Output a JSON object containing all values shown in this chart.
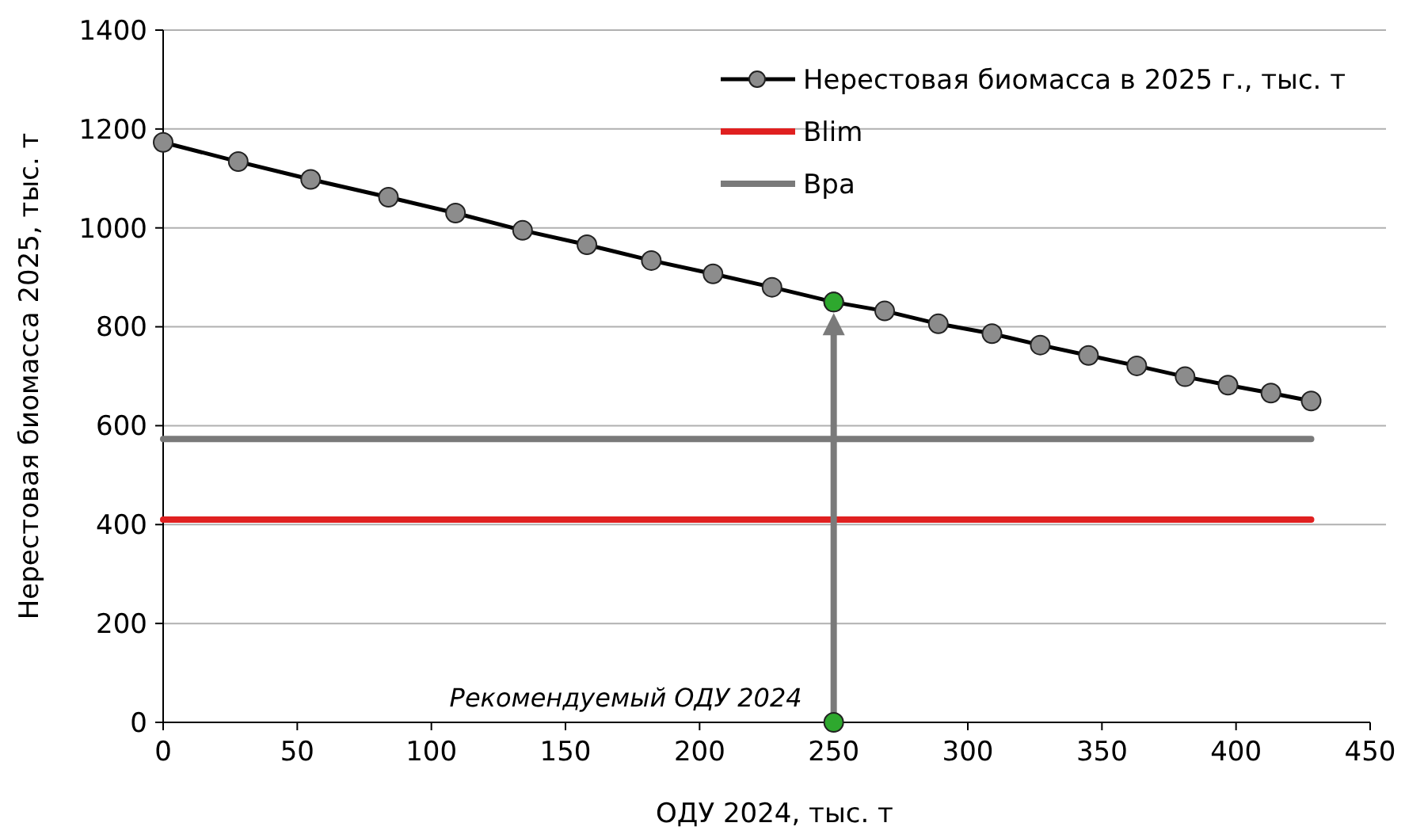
{
  "chart_data": {
    "type": "line",
    "xlabel": "ОДУ 2024, тыс. т",
    "ylabel": "Нерестовая биомасса 2025, тыс. т",
    "xlim": [
      0,
      450
    ],
    "xticks": [
      0,
      50,
      100,
      150,
      200,
      250,
      300,
      350,
      400,
      450
    ],
    "ylim": [
      0,
      1400
    ],
    "yticks": [
      0,
      200,
      400,
      600,
      800,
      1000,
      1200,
      1400
    ],
    "grid": "y",
    "legend": "top right",
    "series": [
      {
        "name": "Нерестовая биомасса в 2025 г., тыс. т",
        "color": "#000000",
        "marker": "circle",
        "x": [
          0,
          28,
          55,
          84,
          109,
          134,
          158,
          182,
          205,
          227,
          250,
          269,
          289,
          309,
          327,
          345,
          363,
          381,
          397,
          413,
          428
        ],
        "values": [
          1173,
          1134,
          1098,
          1062,
          1030,
          995,
          966,
          934,
          907,
          880,
          850,
          832,
          806,
          786,
          763,
          742,
          721,
          699,
          682,
          666,
          650
        ]
      },
      {
        "name": "Blim",
        "color": "#e02020",
        "x": [
          0,
          428
        ],
        "values": [
          410,
          410
        ]
      },
      {
        "name": "Bpa",
        "color": "#7a7a7a",
        "x": [
          0,
          428
        ],
        "values": [
          573,
          573
        ]
      },
      {
        "type": "scatter",
        "color": "#2ea82e",
        "marker": "circle",
        "x": [
          250,
          250
        ],
        "values": [
          0,
          850
        ]
      }
    ],
    "annotations": [
      {
        "text": "Рекомендуемый ОДУ 2024",
        "x": 250,
        "y": 0
      }
    ]
  }
}
